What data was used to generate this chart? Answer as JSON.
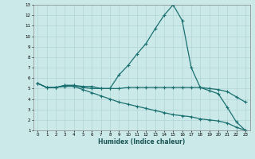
{
  "xlabel": "Humidex (Indice chaleur)",
  "xlim": [
    -0.5,
    23.5
  ],
  "ylim": [
    1,
    13
  ],
  "xticks": [
    0,
    1,
    2,
    3,
    4,
    5,
    6,
    7,
    8,
    9,
    10,
    11,
    12,
    13,
    14,
    15,
    16,
    17,
    18,
    19,
    20,
    21,
    22,
    23
  ],
  "yticks": [
    1,
    2,
    3,
    4,
    5,
    6,
    7,
    8,
    9,
    10,
    11,
    12,
    13
  ],
  "background_color": "#cce9e9",
  "grid_color": "#b0d4d4",
  "line_color": "#1a7070",
  "line_width": 0.9,
  "marker": "+",
  "marker_size": 3,
  "markeredgewidth": 0.8,
  "curves": [
    {
      "x": [
        0,
        1,
        2,
        3,
        4,
        5,
        6,
        7,
        8,
        9,
        10,
        11,
        12,
        13,
        14,
        15,
        16,
        17,
        18,
        19,
        20,
        21,
        22,
        23
      ],
      "y": [
        5.5,
        5.1,
        5.1,
        5.3,
        5.3,
        5.2,
        5.2,
        5.0,
        5.0,
        6.3,
        7.2,
        8.3,
        9.3,
        10.7,
        12.0,
        13.0,
        11.5,
        7.0,
        5.1,
        4.8,
        4.5,
        3.2,
        1.8,
        1.0
      ]
    },
    {
      "x": [
        0,
        1,
        2,
        3,
        4,
        5,
        6,
        7,
        8,
        9,
        10,
        11,
        12,
        13,
        14,
        15,
        16,
        17,
        18,
        19,
        20,
        21,
        22,
        23
      ],
      "y": [
        5.5,
        5.1,
        5.1,
        5.3,
        5.3,
        5.1,
        5.0,
        5.0,
        5.0,
        5.0,
        5.1,
        5.1,
        5.1,
        5.1,
        5.1,
        5.1,
        5.1,
        5.1,
        5.1,
        5.0,
        4.9,
        4.7,
        4.2,
        3.7
      ]
    },
    {
      "x": [
        0,
        1,
        2,
        3,
        4,
        5,
        6,
        7,
        8,
        9,
        10,
        11,
        12,
        13,
        14,
        15,
        16,
        17,
        18,
        19,
        20,
        21,
        22,
        23
      ],
      "y": [
        5.5,
        5.1,
        5.1,
        5.2,
        5.2,
        4.9,
        4.6,
        4.3,
        4.0,
        3.7,
        3.5,
        3.3,
        3.1,
        2.9,
        2.7,
        2.5,
        2.4,
        2.3,
        2.1,
        2.0,
        1.9,
        1.7,
        1.3,
        1.0
      ]
    }
  ]
}
